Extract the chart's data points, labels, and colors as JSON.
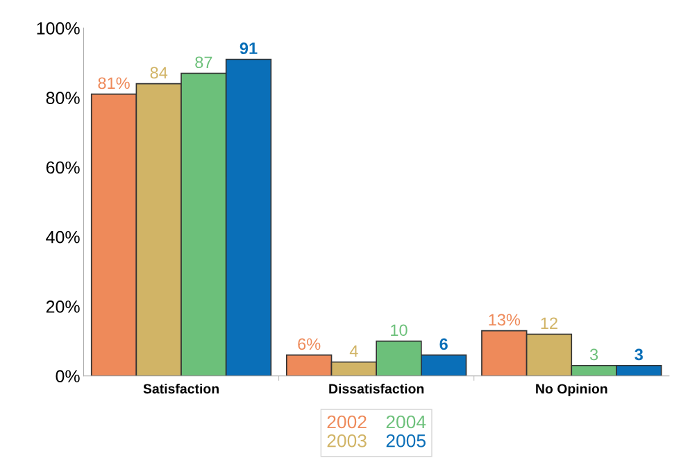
{
  "chart_data": {
    "type": "bar",
    "categories": [
      "Satisfaction",
      "Dissatisfaction",
      "No Opinion"
    ],
    "series": [
      {
        "name": "2002",
        "color": "#ee8a5a",
        "values": [
          81,
          6,
          13
        ],
        "value_labels": [
          "81%",
          "6%",
          "13%"
        ]
      },
      {
        "name": "2003",
        "color": "#d1b466",
        "values": [
          84,
          4,
          12
        ],
        "value_labels": [
          "84",
          "4",
          "12"
        ]
      },
      {
        "name": "2004",
        "color": "#6cc07a",
        "values": [
          87,
          10,
          3
        ],
        "value_labels": [
          "87",
          "10",
          "3"
        ]
      },
      {
        "name": "2005",
        "color": "#0a6fb8",
        "values": [
          91,
          6,
          3
        ],
        "value_labels": [
          "91",
          "6",
          "3"
        ]
      }
    ],
    "ylim": [
      0,
      100
    ],
    "yticks": [
      {
        "value": 0,
        "label": "0%"
      },
      {
        "value": 20,
        "label": "20%"
      },
      {
        "value": 40,
        "label": "40%"
      },
      {
        "value": 60,
        "label": "60%"
      },
      {
        "value": 80,
        "label": "80%"
      },
      {
        "value": 100,
        "label": "100%"
      }
    ],
    "grid": false,
    "legend": "bottom"
  }
}
